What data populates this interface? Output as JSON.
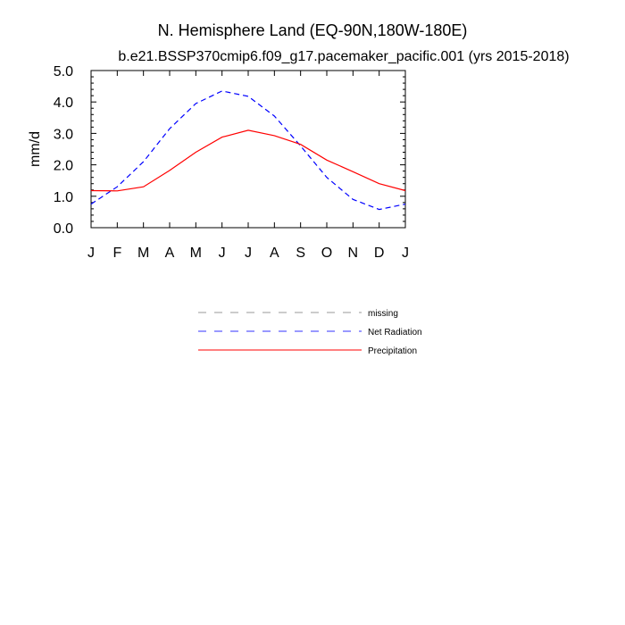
{
  "chart_data": {
    "type": "line",
    "title": "N. Hemisphere Land (EQ-90N,180W-180E)",
    "subtitle": "b.e21.BSSP370cmip6.f09_g17.pacemaker_pacific.001 (yrs 2015-2018)",
    "xlabel": "",
    "ylabel": "mm/d",
    "categories": [
      "J",
      "F",
      "M",
      "A",
      "M",
      "J",
      "J",
      "A",
      "S",
      "O",
      "N",
      "D",
      "J"
    ],
    "ylim": [
      0,
      5
    ],
    "yticks": [
      "0.0",
      "1.0",
      "2.0",
      "3.0",
      "4.0",
      "5.0"
    ],
    "grid": false,
    "legend_position": "below",
    "series": [
      {
        "name": "Net Radiation",
        "style": "dashed",
        "color": "#0000ff",
        "values": [
          0.75,
          1.3,
          2.1,
          3.15,
          3.95,
          4.35,
          4.18,
          3.55,
          2.6,
          1.6,
          0.9,
          0.58,
          0.75
        ]
      },
      {
        "name": "Precipitation",
        "style": "solid",
        "color": "#ff0000",
        "values": [
          1.18,
          1.17,
          1.3,
          1.82,
          2.4,
          2.88,
          3.1,
          2.93,
          2.65,
          2.15,
          1.78,
          1.4,
          1.18
        ]
      }
    ],
    "legend": [
      {
        "label": "missing",
        "style": "dashed",
        "color": "#999999"
      },
      {
        "label": "Net Radiation",
        "style": "dashed",
        "color": "#3333ff"
      },
      {
        "label": "Precipitation",
        "style": "solid",
        "color": "#ff0000"
      }
    ]
  }
}
